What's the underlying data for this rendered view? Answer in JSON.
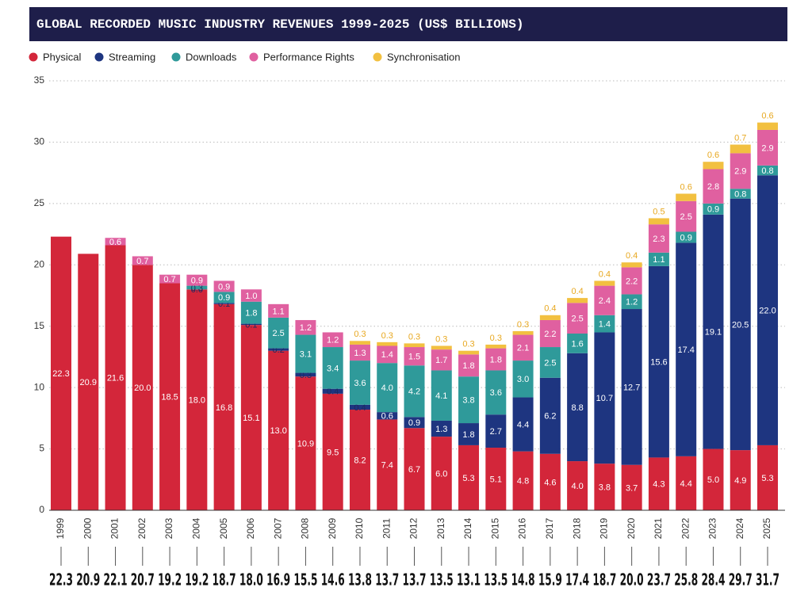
{
  "chart_data": {
    "type": "stacked_bar",
    "title": "GLOBAL RECORDED MUSIC INDUSTRY REVENUES 1999-2025 (US$ BILLIONS)",
    "categories": [
      "1999",
      "2000",
      "2001",
      "2002",
      "2003",
      "2004",
      "2005",
      "2006",
      "2007",
      "2008",
      "2009",
      "2010",
      "2011",
      "2012",
      "2013",
      "2014",
      "2015",
      "2016",
      "2017",
      "2018",
      "2019",
      "2020",
      "2021",
      "2022",
      "2023",
      "2024",
      "2025"
    ],
    "ylim": [
      0,
      35
    ],
    "yticks": [
      0,
      5,
      10,
      15,
      20,
      25,
      30,
      35
    ],
    "grid": true,
    "legend": "top-left",
    "series": [
      {
        "name": "Physical",
        "color": "#d3263a",
        "values": [
          22.3,
          20.9,
          21.6,
          20,
          18.5,
          18,
          16.8,
          15.1,
          13,
          10.9,
          9.5,
          8.2,
          7.4,
          6.7,
          6,
          5.3,
          5.1,
          4.8,
          4.6,
          4,
          3.8,
          3.7,
          4.3,
          4.4,
          5,
          4.9,
          5.3
        ],
        "value_labels": [
          "22.3",
          "20.9",
          "21.6",
          "20.0",
          "18.5",
          "18.0",
          "16.8",
          "15.1",
          "13.0",
          "10.9",
          "9.5",
          "8.2",
          "7.4",
          "6.7",
          "6.0",
          "5.3",
          "5.1",
          "4.8",
          "4.6",
          "4.0",
          "3.8",
          "3.7",
          "4.3",
          "4.4",
          "5.0",
          "4.9",
          "5.3"
        ]
      },
      {
        "name": "Streaming",
        "color": "#1e3580",
        "values": [
          null,
          null,
          null,
          null,
          null,
          0,
          0.1,
          0.1,
          0.2,
          0.3,
          0.4,
          0.4,
          0.6,
          0.9,
          1.3,
          1.8,
          2.7,
          4.4,
          6.2,
          8.8,
          10.7,
          12.7,
          15.6,
          17.4,
          19.1,
          20.5,
          22
        ],
        "value_labels": [
          null,
          null,
          null,
          null,
          null,
          "0.0",
          "0.1",
          "0.1",
          "0.2",
          "0.3",
          "0.4",
          "0.4",
          "0.6",
          "0.9",
          "1.3",
          "1.8",
          "2.7",
          "4.4",
          "6.2",
          "8.8",
          "10.7",
          "12.7",
          "15.6",
          "17.4",
          "19.1",
          "20.5",
          "22.0"
        ]
      },
      {
        "name": "Downloads",
        "color": "#2f9a9a",
        "values": [
          null,
          null,
          null,
          null,
          null,
          0.3,
          0.9,
          1.8,
          2.5,
          3.1,
          3.4,
          3.6,
          4,
          4.2,
          4.1,
          3.8,
          3.6,
          3,
          2.5,
          1.6,
          1.4,
          1.2,
          1.1,
          0.9,
          0.9,
          0.8,
          0.8
        ],
        "value_labels": [
          null,
          null,
          null,
          null,
          null,
          "0.3",
          "0.9",
          "1.8",
          "2.5",
          "3.1",
          "3.4",
          "3.6",
          "4.0",
          "4.2",
          "4.1",
          "3.8",
          "3.6",
          "3.0",
          "2.5",
          "1.6",
          "1.4",
          "1.2",
          "1.1",
          "0.9",
          "0.9",
          "0.8",
          "0.8"
        ]
      },
      {
        "name": "Performance Rights",
        "color": "#e060a0",
        "values": [
          null,
          null,
          0.6,
          0.7,
          0.7,
          0.9,
          0.9,
          1,
          1.1,
          1.2,
          1.2,
          1.3,
          1.4,
          1.5,
          1.7,
          1.8,
          1.8,
          2.1,
          2.2,
          2.5,
          2.4,
          2.2,
          2.3,
          2.5,
          2.8,
          2.9,
          2.9
        ],
        "value_labels": [
          null,
          null,
          "0.6",
          "0.7",
          "0.7",
          "0.9",
          "0.9",
          "1.0",
          "1.1",
          "1.2",
          "1.2",
          "1.3",
          "1.4",
          "1.5",
          "1.7",
          "1.8",
          "1.8",
          "2.1",
          "2.2",
          "2.5",
          "2.4",
          "2.2",
          "2.3",
          "2.5",
          "2.8",
          "2.9",
          "2.9"
        ]
      },
      {
        "name": "Synchronisation",
        "color": "#f2c040",
        "values": [
          null,
          null,
          null,
          null,
          null,
          null,
          null,
          null,
          null,
          null,
          null,
          0.3,
          0.3,
          0.3,
          0.3,
          0.3,
          0.3,
          0.3,
          0.4,
          0.4,
          0.4,
          0.4,
          0.5,
          0.6,
          0.6,
          0.7,
          0.6
        ],
        "value_labels": [
          null,
          null,
          null,
          null,
          null,
          null,
          null,
          null,
          null,
          null,
          null,
          "0.3",
          "0.3",
          "0.3",
          "0.3",
          "0.3",
          "0.3",
          "0.3",
          "0.4",
          "0.4",
          "0.4",
          "0.4",
          "0.5",
          "0.6",
          "0.6",
          "0.7",
          "0.6"
        ]
      }
    ],
    "totals": {
      "values": [
        22.3,
        20.9,
        22.1,
        20.7,
        19.2,
        19.2,
        18.7,
        18,
        16.9,
        15.5,
        14.6,
        13.8,
        13.7,
        13.7,
        13.5,
        13.1,
        13.5,
        14.8,
        15.9,
        17.4,
        18.7,
        20,
        23.7,
        25.8,
        28.4,
        29.7,
        31.7
      ],
      "value_labels": [
        "22.3",
        "20.9",
        "22.1",
        "20.7",
        "19.2",
        "19.2",
        "18.7",
        "18.0",
        "16.9",
        "15.5",
        "14.6",
        "13.8",
        "13.7",
        "13.7",
        "13.5",
        "13.1",
        "13.5",
        "14.8",
        "15.9",
        "17.4",
        "18.7",
        "20.0",
        "23.7",
        "25.8",
        "28.4",
        "29.7",
        "31.7"
      ]
    }
  }
}
